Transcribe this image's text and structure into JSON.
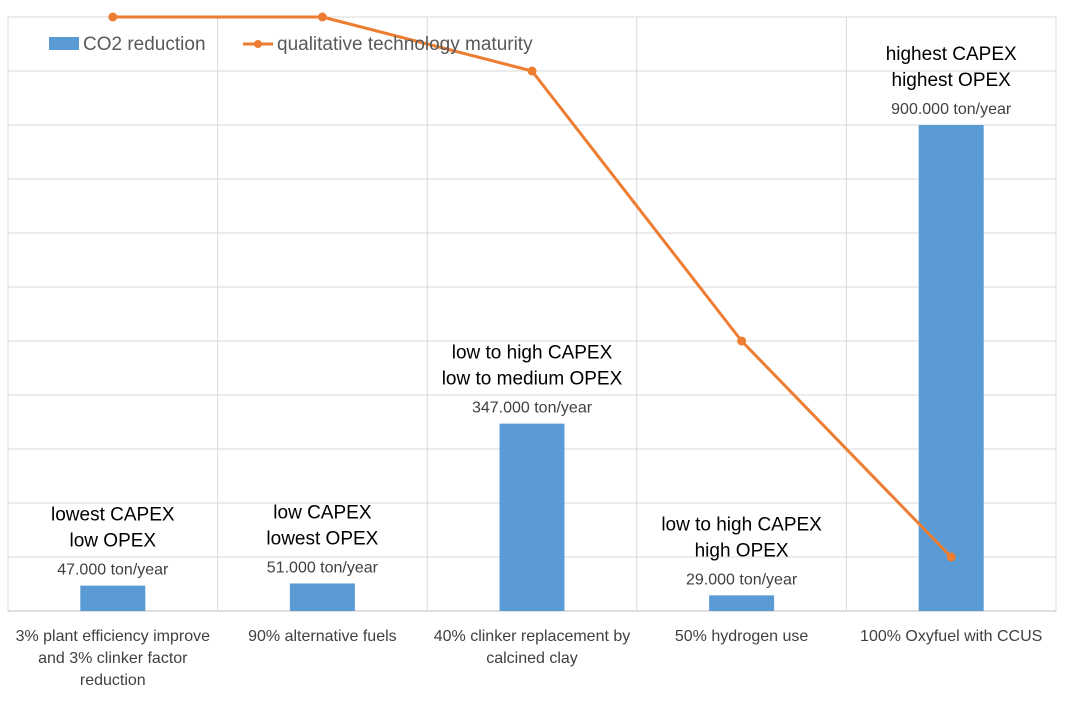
{
  "chart_data": {
    "type": "bar",
    "title": "",
    "xlabel": "",
    "ylabel": "",
    "grid": true,
    "legend_position": "top-left",
    "categories": [
      [
        "3% plant efficiency improve",
        "and 3% clinker factor",
        "reduction"
      ],
      [
        "90% alternative fuels"
      ],
      [
        "40% clinker replacement by",
        "calcined clay"
      ],
      [
        "50% hydrogen use"
      ],
      [
        "100% Oxyfuel with CCUS"
      ]
    ],
    "series": [
      {
        "name": "CO2 reduction",
        "type": "bar",
        "color": "#5B9BD5",
        "values": [
          47000,
          51000,
          347000,
          29000,
          900000
        ],
        "value_labels": [
          "47.000 ton/year",
          "51.000 ton/year",
          "347.000 ton/year",
          "29.000 ton/year",
          "900.000 ton/year"
        ]
      },
      {
        "name": "qualitative technology maturity",
        "type": "line",
        "color": "#ED7D31",
        "values": [
          9,
          9,
          8,
          3,
          -1
        ]
      }
    ],
    "cost_annotations": [
      [
        "lowest CAPEX",
        "low OPEX"
      ],
      [
        "low CAPEX",
        "lowest OPEX"
      ],
      [
        "low to high CAPEX",
        "low to medium OPEX"
      ],
      [
        "low to high CAPEX",
        "high OPEX"
      ],
      [
        "highest CAPEX",
        "highest OPEX"
      ]
    ],
    "bar_axis_range": [
      0,
      1100000
    ],
    "line_axis_range": [
      -2,
      9
    ]
  }
}
